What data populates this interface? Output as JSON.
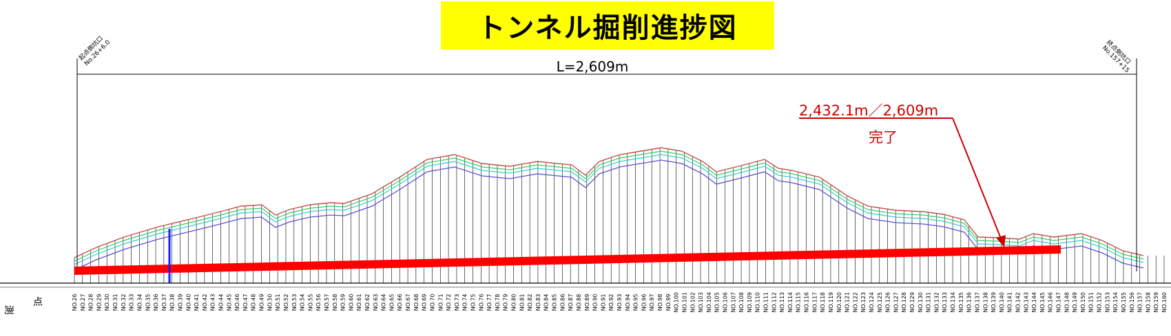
{
  "title": "トンネル掘削進捗図",
  "start_portal": {
    "label": "起点側坑口",
    "station": "No.26+6.0"
  },
  "end_portal": {
    "label": "終点側坑口",
    "station": "No.157+15"
  },
  "length_label": "L=2,609m",
  "progress": {
    "text": "2,432.1m／2,609m",
    "status": "完了",
    "completed_m": 2432.1,
    "total_m": 2609,
    "fraction": 0.932
  },
  "row_labels": {
    "left": "測",
    "right": "点"
  },
  "station_prefix": "NO.",
  "station_first": 26,
  "station_last": 160,
  "colors": {
    "title_bg": "#ffff00",
    "progress": "#ff0000",
    "annotation": "#cc0000",
    "ground_red": "#c0504d",
    "ground_green": "#33cc66",
    "ground_cyan": "#33cccc",
    "ground_blue": "#5a4fd6",
    "grid": "#000000"
  },
  "icons": {
    "leader_arrow": "arrow-icon",
    "portal_marker": "portal-marker-icon"
  }
}
